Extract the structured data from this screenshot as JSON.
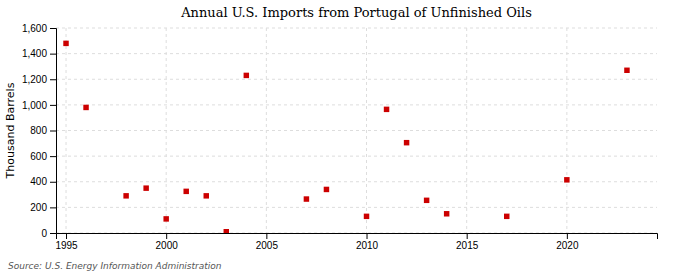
{
  "chart_data": {
    "type": "scatter",
    "title": "Annual U.S. Imports from Portugal of Unfinished Oils",
    "y_label": "Thousand Barrels",
    "annotations": [
      "Source: U.S. Energy Information Administration"
    ],
    "x": [
      1995,
      1996,
      1998,
      1999,
      2000,
      2001,
      2002,
      2003,
      2004,
      2007,
      2008,
      2010,
      2011,
      2012,
      2013,
      2014,
      2017,
      2020,
      2023
    ],
    "values": [
      1480,
      980,
      290,
      350,
      110,
      325,
      290,
      10,
      1230,
      265,
      340,
      130,
      965,
      705,
      255,
      150,
      130,
      415,
      1270
    ],
    "color": "#cc0000",
    "marker": "square",
    "xlim": [
      1994.5,
      2024.5
    ],
    "xticks": [
      1995,
      2000,
      2005,
      2010,
      2015,
      2020
    ],
    "ylim": [
      0,
      1600
    ],
    "yticks": [
      0,
      200,
      400,
      600,
      800,
      {
        "value": 1000,
        "label": "1,000"
      },
      {
        "value": 1200,
        "label": "1,200"
      },
      {
        "value": 1400,
        "label": "1,400"
      },
      {
        "value": 1600,
        "label": "1,600"
      }
    ],
    "grid": true
  }
}
